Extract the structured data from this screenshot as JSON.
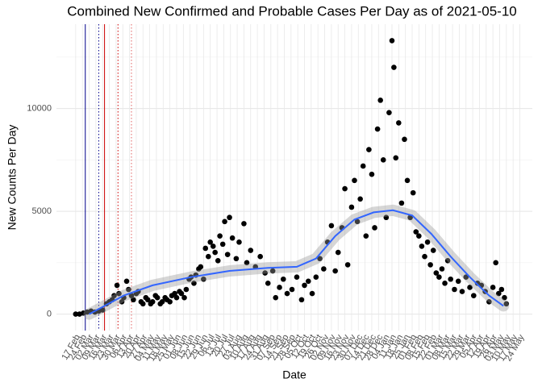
{
  "chart_data": {
    "type": "scatter",
    "title": "Combined New Confirmed and Probable Cases Per Day as of 2021-05-10",
    "x_label": "Date",
    "y_label": "New Counts Per Day",
    "color": "#000000",
    "x": [
      0,
      4,
      8,
      12,
      16,
      20,
      24,
      28,
      32,
      35,
      38,
      40,
      43,
      45,
      48,
      50,
      53,
      55,
      58,
      60,
      63,
      65,
      68,
      70,
      73,
      75,
      78,
      80,
      83,
      85,
      88,
      90,
      93,
      95,
      98,
      100,
      103,
      105,
      108,
      110,
      113,
      115,
      118,
      120,
      123,
      125,
      128,
      130,
      133,
      135,
      138,
      140,
      143,
      145,
      148,
      150,
      153,
      155,
      158,
      160,
      163,
      167,
      170,
      175,
      178,
      182,
      187,
      192,
      197,
      200,
      205,
      208,
      212,
      216,
      220,
      225,
      230,
      235,
      238,
      242,
      246,
      250,
      254,
      258,
      262,
      266,
      270,
      273,
      277,
      280,
      283,
      287,
      290,
      293,
      296,
      299,
      302,
      305,
      308,
      311,
      314,
      317,
      320,
      323,
      326,
      329,
      331,
      333,
      336,
      339,
      342,
      345,
      348,
      351,
      354,
      357,
      360,
      363,
      366,
      369,
      372,
      375,
      378,
      381,
      384,
      387,
      390,
      394,
      398,
      402,
      406,
      410,
      414,
      418,
      422,
      426,
      430,
      434,
      437,
      440,
      443,
      446,
      448
    ],
    "values": [
      0,
      0,
      50,
      100,
      150,
      100,
      150,
      200,
      500,
      600,
      700,
      900,
      1400,
      1000,
      600,
      800,
      1600,
      1200,
      900,
      700,
      1000,
      1100,
      600,
      500,
      800,
      700,
      500,
      600,
      900,
      800,
      500,
      600,
      800,
      700,
      600,
      900,
      1000,
      800,
      1100,
      1000,
      800,
      1200,
      1700,
      1800,
      1500,
      1900,
      2200,
      2300,
      1700,
      3200,
      2800,
      3500,
      3300,
      3000,
      2600,
      3800,
      3400,
      4500,
      2900,
      4700,
      3700,
      2700,
      3500,
      4400,
      2500,
      3100,
      2300,
      2800,
      2000,
      1500,
      2100,
      800,
      1300,
      1700,
      1000,
      1200,
      1800,
      700,
      1400,
      1600,
      1000,
      1800,
      2700,
      2200,
      3500,
      4300,
      2100,
      3000,
      4200,
      6100,
      2400,
      5200,
      6500,
      4500,
      5600,
      7200,
      3800,
      8000,
      6800,
      4200,
      9000,
      10400,
      7500,
      4700,
      9800,
      13300,
      12000,
      7600,
      9300,
      5400,
      8500,
      6500,
      4700,
      5900,
      4000,
      3800,
      3300,
      2800,
      3500,
      2400,
      3100,
      2000,
      1800,
      2200,
      1500,
      2600,
      1700,
      1200,
      1600,
      1100,
      1800,
      1300,
      900,
      1500,
      1400,
      1100,
      600,
      1300,
      2500,
      1000,
      1200,
      800,
      500
    ],
    "smooth": {
      "color": "#3366ff",
      "x": [
        14,
        30,
        50,
        80,
        120,
        160,
        200,
        230,
        250,
        270,
        290,
        310,
        330,
        350,
        370,
        390,
        410,
        430,
        445
      ],
      "values": [
        0,
        400,
        900,
        1400,
        1800,
        2100,
        2250,
        2300,
        2700,
        3800,
        4600,
        4950,
        5050,
        4800,
        3900,
        2800,
        1800,
        900,
        400
      ]
    },
    "vlines": [
      {
        "x": 10,
        "color": "#00008b",
        "dash": false
      },
      {
        "x": 24,
        "color": "#00008b",
        "dash": true
      },
      {
        "x": 30,
        "color": "#cc0000",
        "dash": false
      },
      {
        "x": 44,
        "color": "#cc0000",
        "dash": true
      },
      {
        "x": 58,
        "color": "#e06060",
        "dash": true
      }
    ],
    "xlim": [
      -20,
      475
    ],
    "ylim": [
      -800,
      14100
    ],
    "yticks": [
      0,
      5000,
      10000
    ],
    "yminor": [
      2500,
      7500,
      12500
    ],
    "xticks": [
      {
        "value": 0,
        "label": "17 Feb"
      },
      {
        "value": 7,
        "label": "24 Feb"
      },
      {
        "value": 14,
        "label": "02 Mar"
      },
      {
        "value": 21,
        "label": "09 Mar"
      },
      {
        "value": 28,
        "label": "16 Mar"
      },
      {
        "value": 35,
        "label": "23 Mar"
      },
      {
        "value": 42,
        "label": "30 Mar"
      },
      {
        "value": 49,
        "label": "06 Apr"
      },
      {
        "value": 56,
        "label": "13 Apr"
      },
      {
        "value": 63,
        "label": "20 Apr"
      },
      {
        "value": 70,
        "label": "27 Apr"
      },
      {
        "value": 77,
        "label": "04 May"
      },
      {
        "value": 84,
        "label": "11 May"
      },
      {
        "value": 91,
        "label": "18 May"
      },
      {
        "value": 98,
        "label": "25 May"
      },
      {
        "value": 105,
        "label": "01 Jun"
      },
      {
        "value": 112,
        "label": "08 Jun"
      },
      {
        "value": 119,
        "label": "15 Jun"
      },
      {
        "value": 126,
        "label": "22 Jun"
      },
      {
        "value": 133,
        "label": "29 Jun"
      },
      {
        "value": 140,
        "label": "06 Jul"
      },
      {
        "value": 147,
        "label": "13 Jul"
      },
      {
        "value": 154,
        "label": "20 Jul"
      },
      {
        "value": 161,
        "label": "27 Jul"
      },
      {
        "value": 168,
        "label": "03 Aug"
      },
      {
        "value": 175,
        "label": "10 Aug"
      },
      {
        "value": 182,
        "label": "17 Aug"
      },
      {
        "value": 189,
        "label": "24 Aug"
      },
      {
        "value": 196,
        "label": "31 Aug"
      },
      {
        "value": 203,
        "label": "07 Sep"
      },
      {
        "value": 210,
        "label": "14 Sep"
      },
      {
        "value": 217,
        "label": "21 Sep"
      },
      {
        "value": 224,
        "label": "28 Sep"
      },
      {
        "value": 231,
        "label": "05 Oct"
      },
      {
        "value": 238,
        "label": "12 Oct"
      },
      {
        "value": 245,
        "label": "19 Oct"
      },
      {
        "value": 252,
        "label": "26 Oct"
      },
      {
        "value": 259,
        "label": "02 Nov"
      },
      {
        "value": 266,
        "label": "09 Nov"
      },
      {
        "value": 273,
        "label": "16 Nov"
      },
      {
        "value": 280,
        "label": "23 Nov"
      },
      {
        "value": 287,
        "label": "30 Nov"
      },
      {
        "value": 294,
        "label": "07 Dec"
      },
      {
        "value": 301,
        "label": "14 Dec"
      },
      {
        "value": 308,
        "label": "21 Dec"
      },
      {
        "value": 315,
        "label": "28 Dec"
      },
      {
        "value": 322,
        "label": "04 Jan"
      },
      {
        "value": 329,
        "label": "11 Jan"
      },
      {
        "value": 336,
        "label": "18 Jan"
      },
      {
        "value": 343,
        "label": "25 Jan"
      },
      {
        "value": 350,
        "label": "01 Feb"
      },
      {
        "value": 357,
        "label": "08 Feb"
      },
      {
        "value": 364,
        "label": "15 Feb"
      },
      {
        "value": 371,
        "label": "22 Feb"
      },
      {
        "value": 378,
        "label": "01 Mar"
      },
      {
        "value": 385,
        "label": "08 Mar"
      },
      {
        "value": 392,
        "label": "15 Mar"
      },
      {
        "value": 399,
        "label": "22 Mar"
      },
      {
        "value": 406,
        "label": "29 Mar"
      },
      {
        "value": 413,
        "label": "05 Apr"
      },
      {
        "value": 420,
        "label": "12 Apr"
      },
      {
        "value": 427,
        "label": "19 Apr"
      },
      {
        "value": 434,
        "label": "26 Apr"
      },
      {
        "value": 441,
        "label": "03 May"
      },
      {
        "value": 448,
        "label": "10 May"
      },
      {
        "value": 455,
        "label": "17 May"
      },
      {
        "value": 462,
        "label": "24 May"
      }
    ],
    "grid": true
  }
}
